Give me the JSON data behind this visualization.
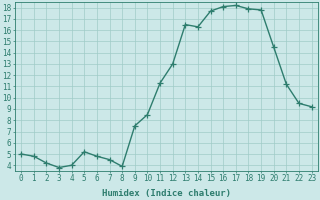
{
  "x": [
    0,
    1,
    2,
    3,
    4,
    5,
    6,
    7,
    8,
    9,
    10,
    11,
    12,
    13,
    14,
    15,
    16,
    17,
    18,
    19,
    20,
    21,
    22,
    23
  ],
  "y": [
    5.0,
    4.8,
    4.2,
    3.8,
    4.0,
    5.2,
    4.8,
    4.5,
    3.9,
    7.5,
    8.5,
    11.3,
    13.0,
    16.5,
    16.3,
    17.7,
    18.1,
    18.2,
    17.9,
    17.8,
    14.5,
    11.2,
    9.5,
    9.2
  ],
  "line_color": "#2e7d6e",
  "marker": "+",
  "marker_size": 4,
  "bg_color": "#cce8e8",
  "grid_color": "#a0ccc8",
  "xlabel": "Humidex (Indice chaleur)",
  "xlim": [
    -0.5,
    23.5
  ],
  "ylim": [
    3.5,
    18.5
  ],
  "yticks": [
    4,
    5,
    6,
    7,
    8,
    9,
    10,
    11,
    12,
    13,
    14,
    15,
    16,
    17,
    18
  ],
  "xticks": [
    0,
    1,
    2,
    3,
    4,
    5,
    6,
    7,
    8,
    9,
    10,
    11,
    12,
    13,
    14,
    15,
    16,
    17,
    18,
    19,
    20,
    21,
    22,
    23
  ],
  "tick_fontsize": 5.5,
  "label_fontsize": 6.5,
  "line_width": 1.0,
  "marker_edge_width": 0.9
}
